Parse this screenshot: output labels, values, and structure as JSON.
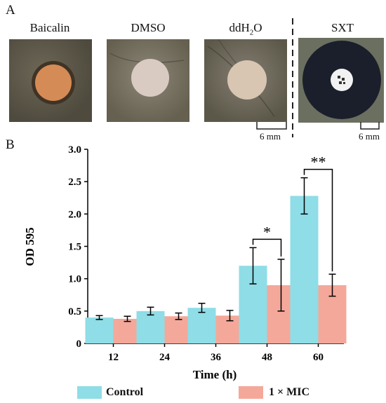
{
  "panel_a": {
    "letter": "A",
    "samples": [
      {
        "label": "Baicalin",
        "disc_color": "#d58b55",
        "halo_color": "#3f3326"
      },
      {
        "label": "DMSO",
        "disc_color": "#d9cbc2",
        "halo_color": ""
      },
      {
        "label": "ddH2O",
        "disc_color": "#d8c6b2",
        "halo_color": ""
      },
      {
        "label": "SXT",
        "disc_color": "#f2f2f2",
        "halo_color": "#1b1f2b"
      }
    ],
    "scale_labels": [
      "6 mm",
      "6 mm"
    ]
  },
  "panel_b": {
    "letter": "B"
  },
  "chart_data": {
    "type": "bar",
    "categories": [
      "12",
      "24",
      "36",
      "48",
      "60"
    ],
    "series": [
      {
        "name": "Control",
        "color": "#8fdde6",
        "values": [
          0.4,
          0.5,
          0.55,
          1.2,
          2.28
        ],
        "errors": [
          0.03,
          0.06,
          0.07,
          0.28,
          0.28
        ]
      },
      {
        "name": "1 × MIC",
        "color": "#f4a89a",
        "values": [
          0.38,
          0.42,
          0.43,
          0.9,
          0.9
        ],
        "errors": [
          0.04,
          0.05,
          0.08,
          0.4,
          0.17
        ]
      }
    ],
    "xlabel": "Time (h)",
    "ylabel": "OD 595",
    "ylim": [
      0,
      3.0
    ],
    "yticks": [
      "0",
      "0.5",
      "1.0",
      "1.5",
      "2.0",
      "2.5",
      "3.0"
    ],
    "significance": [
      {
        "category": "48",
        "label": "*"
      },
      {
        "category": "60",
        "label": "**"
      }
    ],
    "legend": {
      "placement": "bottom",
      "items": [
        "Control",
        "1 × MIC"
      ]
    }
  }
}
